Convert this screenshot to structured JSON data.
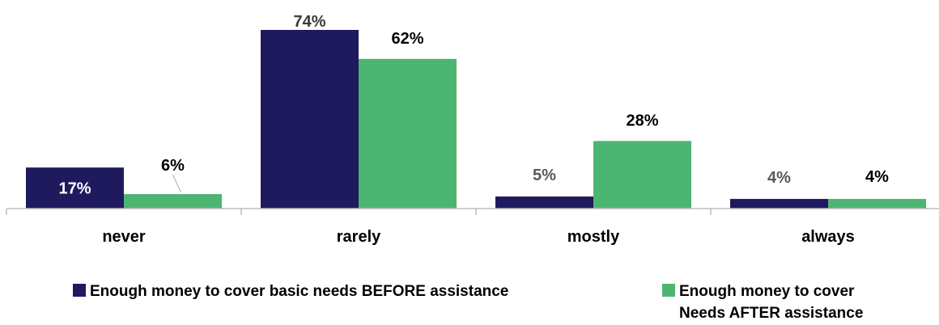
{
  "chart_data": {
    "type": "bar",
    "categories": [
      "never",
      "rarely",
      "mostly",
      "always"
    ],
    "series": [
      {
        "name": "Enough money to cover basic needs BEFORE assistance",
        "color": "#1f1a5e",
        "values": [
          17,
          74,
          5,
          4
        ],
        "labels": [
          "17%",
          "74%",
          "5%",
          "4%"
        ]
      },
      {
        "name": "Enough money to cover Needs AFTER assistance",
        "name_lines": [
          "Enough money to cover",
          "Needs AFTER assistance"
        ],
        "color": "#4db572",
        "values": [
          6,
          62,
          28,
          4
        ],
        "labels": [
          "6%",
          "62%",
          "28%",
          "4%"
        ]
      }
    ],
    "ylim": [
      0,
      80
    ],
    "grid": false,
    "legend": "bottom",
    "title": "",
    "xlabel": "",
    "ylabel": ""
  }
}
